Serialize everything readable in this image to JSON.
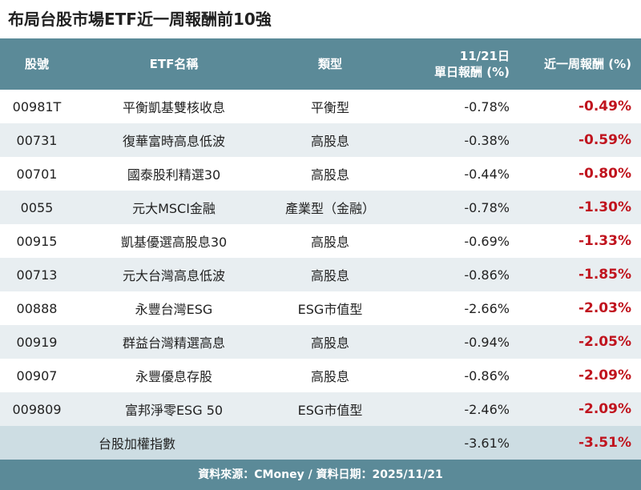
{
  "title": "布局台股市場ETF近一周報酬前10強",
  "chart_data": {
    "type": "table",
    "headers": {
      "code": "股號",
      "name": "ETF名稱",
      "type": "類型",
      "daily_line1": "11/21日",
      "daily_line2": "單日報酬 (%)",
      "weekly": "近一周報酬 (%)"
    },
    "rows": [
      {
        "code": "00981T",
        "name": "平衡凱基雙核收息",
        "type": "平衡型",
        "daily": "-0.78%",
        "weekly": "-0.49%"
      },
      {
        "code": "00731",
        "name": "復華富時高息低波",
        "type": "高股息",
        "daily": "-0.38%",
        "weekly": "-0.59%"
      },
      {
        "code": "00701",
        "name": "國泰股利精選30",
        "type": "高股息",
        "daily": "-0.44%",
        "weekly": "-0.80%"
      },
      {
        "code": "0055",
        "name": "元大MSCI金融",
        "type": "產業型（金融）",
        "daily": "-0.78%",
        "weekly": "-1.30%"
      },
      {
        "code": "00915",
        "name": "凱基優選高股息30",
        "type": "高股息",
        "daily": "-0.69%",
        "weekly": "-1.33%"
      },
      {
        "code": "00713",
        "name": "元大台灣高息低波",
        "type": "高股息",
        "daily": "-0.86%",
        "weekly": "-1.85%"
      },
      {
        "code": "00888",
        "name": "永豐台灣ESG",
        "type": "ESG市值型",
        "daily": "-2.66%",
        "weekly": "-2.03%"
      },
      {
        "code": "00919",
        "name": "群益台灣精選高息",
        "type": "高股息",
        "daily": "-0.94%",
        "weekly": "-2.05%"
      },
      {
        "code": "00907",
        "name": "永豐優息存股",
        "type": "高股息",
        "daily": "-0.86%",
        "weekly": "-2.09%"
      },
      {
        "code": "009809",
        "name": "富邦淨零ESG 50",
        "type": "ESG市值型",
        "daily": "-2.46%",
        "weekly": "-2.09%"
      }
    ],
    "summary": {
      "label": "台股加權指數",
      "daily": "-3.61%",
      "weekly": "-3.51%"
    }
  },
  "footer": "資料來源：CMoney / 資料日期：2025/11/21",
  "colors": {
    "header_bg": "#5b8a98",
    "negative": "#c0141e",
    "stripe": "#e8eef1",
    "summary_bg": "#cddde3"
  }
}
